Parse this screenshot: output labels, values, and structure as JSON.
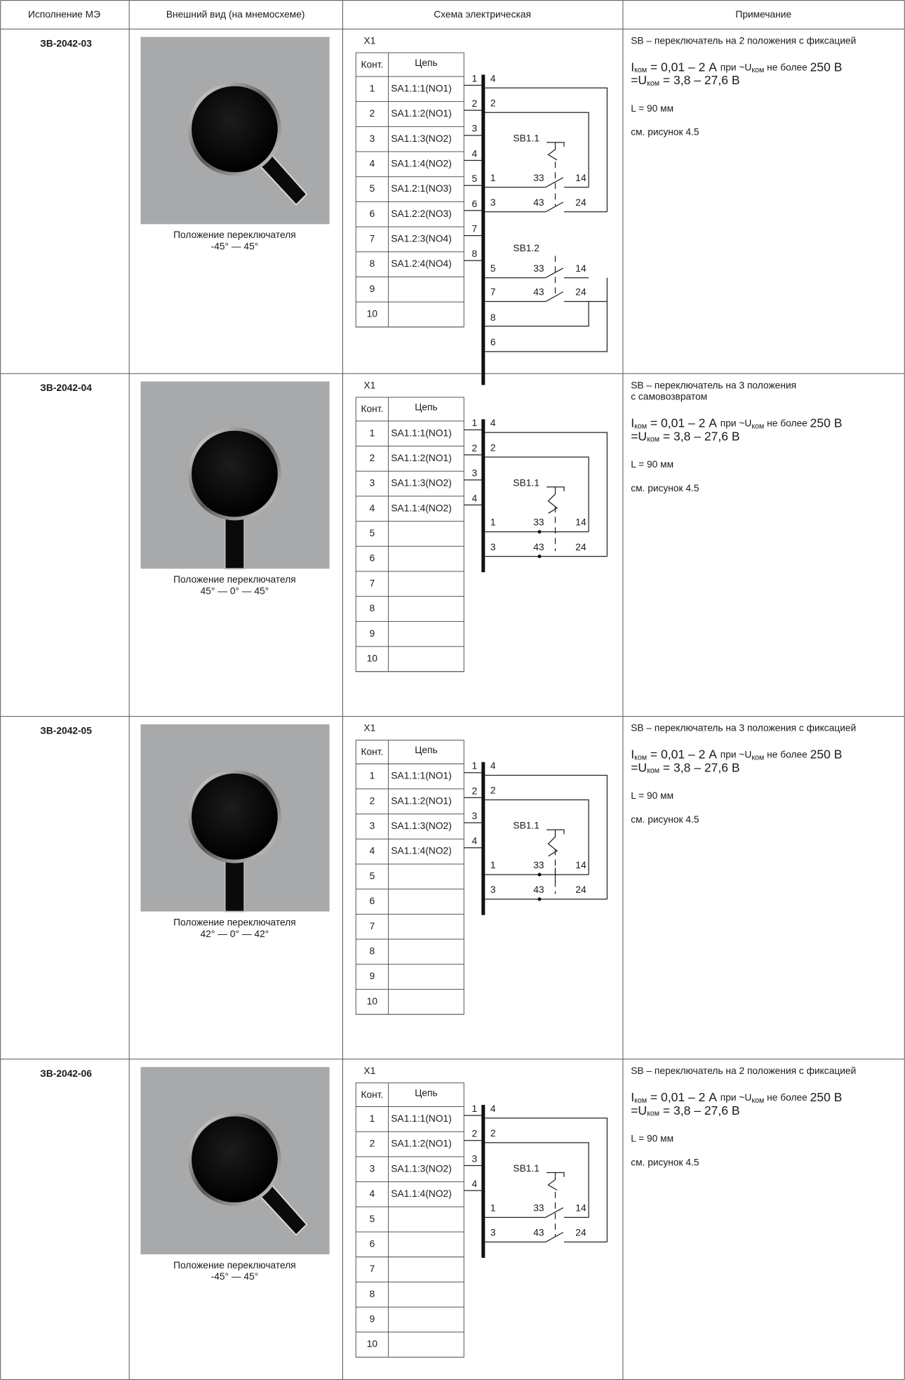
{
  "header": [
    "Исполнение МЭ",
    "Внешний вид (на мнемосхеме)",
    "Схема электрическая",
    "Примечание"
  ],
  "rows": [
    {
      "id": "ЗВ-2042-03",
      "caption": [
        "Положение переключателя",
        "-45° — 45°"
      ],
      "terminal": {
        "title": "X1",
        "headers": [
          "Конт.",
          "Цепь"
        ],
        "numbers": [
          "1",
          "2",
          "3",
          "4",
          "5",
          "6",
          "7",
          "8",
          "9",
          "10"
        ],
        "circuits": [
          "SA1.1:1(NO1)",
          "SA1.1:2(NO1)",
          "SA1.1:3(NO2)",
          "SA1.1:4(NO2)",
          "SA1.2:1(NO3)",
          "SA1.2:2(NO3)",
          "SA1.2:3(NO4)",
          "SA1.2:4(NO4)",
          null,
          null
        ]
      },
      "schematic": {
        "pins": [
          "1",
          "2",
          "3",
          "4",
          "5",
          "6",
          "7",
          "8"
        ],
        "bus_labels": [
          "4",
          "2",
          "1",
          "3",
          "5",
          "7",
          "8",
          "6"
        ],
        "switches": [
          {
            "name": "SB1.1",
            "contacts": [
              [
                "33",
                "14"
              ],
              [
                "43",
                "24"
              ]
            ]
          },
          {
            "name": "SB1.2",
            "contacts": [
              [
                "33",
                "14"
              ],
              [
                "43",
                "24"
              ]
            ]
          }
        ]
      },
      "notes": {
        "description": [
          "SB – переключатель на 2 положения с фиксацией"
        ],
        "current": [
          {
            "text": "I"
          },
          {
            "text": "ком",
            "sub": true
          },
          {
            "text": " = 0,01 – 2 А "
          },
          {
            "text": "при ~U",
            "small": true
          },
          {
            "text": "ком",
            "sub": true
          },
          {
            "text": " не более ",
            "small": true
          },
          {
            "text": "250 В"
          }
        ],
        "voltage": [
          {
            "text": "=U"
          },
          {
            "text": "ком",
            "sub": true
          },
          {
            "text": " = 3,8 – 27,6 В"
          }
        ],
        "length": "L = 90 мм",
        "reference": "см. рисунок 4.5"
      }
    },
    {
      "id": "ЗВ-2042-04",
      "caption": [
        "Положение переключателя",
        "45° — 0° — 45°"
      ],
      "terminal": {
        "title": "X1",
        "headers": [
          "Конт.",
          "Цепь"
        ],
        "numbers": [
          "1",
          "2",
          "3",
          "4",
          "5",
          "6",
          "7",
          "8",
          "9",
          "10"
        ],
        "circuits": [
          "SA1.1:1(NO1)",
          "SA1.1:2(NO1)",
          "SA1.1:3(NO2)",
          "SA1.1:4(NO2)",
          null,
          null,
          null,
          null,
          null,
          null
        ]
      },
      "schematic": {
        "pins": [
          "1",
          "2",
          "3",
          "4"
        ],
        "bus_labels": [
          "4",
          "2",
          "1",
          "3"
        ],
        "switches": [
          {
            "name": "SB1.1",
            "contacts": [
              [
                "33",
                "14"
              ],
              [
                "43",
                "24"
              ]
            ]
          }
        ]
      },
      "notes": {
        "description": [
          "SB – переключатель на 3 положения",
          "с самовозвратом"
        ],
        "current": [
          {
            "text": "I"
          },
          {
            "text": "ком",
            "sub": true
          },
          {
            "text": " = 0,01 – 2 А "
          },
          {
            "text": "при ~U",
            "small": true
          },
          {
            "text": "ком",
            "sub": true
          },
          {
            "text": " не более ",
            "small": true
          },
          {
            "text": "250 В"
          }
        ],
        "voltage": [
          {
            "text": "=U"
          },
          {
            "text": "ком",
            "sub": true
          },
          {
            "text": " = 3,8 – 27,6 В"
          }
        ],
        "length": "L = 90 мм",
        "reference": "см. рисунок 4.5"
      }
    },
    {
      "id": "ЗВ-2042-05",
      "caption": [
        "Положение переключателя",
        "42° — 0° — 42°"
      ],
      "terminal": {
        "title": "X1",
        "headers": [
          "Конт.",
          "Цепь"
        ],
        "numbers": [
          "1",
          "2",
          "3",
          "4",
          "5",
          "6",
          "7",
          "8",
          "9",
          "10"
        ],
        "circuits": [
          "SA1.1:1(NO1)",
          "SA1.1:2(NO1)",
          "SA1.1:3(NO2)",
          "SA1.1:4(NO2)",
          null,
          null,
          null,
          null,
          null,
          null
        ]
      },
      "schematic": {
        "pins": [
          "1",
          "2",
          "3",
          "4"
        ],
        "bus_labels": [
          "4",
          "2",
          "1",
          "3"
        ],
        "switches": [
          {
            "name": "SB1.1",
            "contacts": [
              [
                "33",
                "14"
              ],
              [
                "43",
                "24"
              ]
            ]
          }
        ]
      },
      "notes": {
        "description": [
          "SB – переключатель на 3 положения с фиксацией"
        ],
        "current": [
          {
            "text": "I"
          },
          {
            "text": "ком",
            "sub": true
          },
          {
            "text": " = 0,01 – 2 А "
          },
          {
            "text": "при ~U",
            "small": true
          },
          {
            "text": "ком",
            "sub": true
          },
          {
            "text": " не более ",
            "small": true
          },
          {
            "text": "250 В"
          }
        ],
        "voltage": [
          {
            "text": "=U"
          },
          {
            "text": "ком",
            "sub": true
          },
          {
            "text": " = 3,8 – 27,6 В"
          }
        ],
        "length": "L = 90 мм",
        "reference": "см. рисунок 4.5"
      }
    },
    {
      "id": "ЗВ-2042-06",
      "caption": [
        "Положение переключателя",
        "-45° — 45°"
      ],
      "terminal": {
        "title": "X1",
        "headers": [
          "Конт.",
          "Цепь"
        ],
        "numbers": [
          "1",
          "2",
          "3",
          "4",
          "5",
          "6",
          "7",
          "8",
          "9",
          "10"
        ],
        "circuits": [
          "SA1.1:1(NO1)",
          "SA1.1:2(NO1)",
          "SA1.1:3(NO2)",
          "SA1.1:4(NO2)",
          null,
          null,
          null,
          null,
          null,
          null
        ]
      },
      "schematic": {
        "pins": [
          "1",
          "2",
          "3",
          "4"
        ],
        "bus_labels": [
          "4",
          "2",
          "1",
          "3"
        ],
        "switches": [
          {
            "name": "SB1.1",
            "contacts": [
              [
                "33",
                "14"
              ],
              [
                "43",
                "24"
              ]
            ]
          }
        ]
      },
      "notes": {
        "description": [
          "SB – переключатель на 2 положения с фиксацией"
        ],
        "current": [
          {
            "text": "I"
          },
          {
            "text": "ком",
            "sub": true
          },
          {
            "text": " = 0,01 – 2 А "
          },
          {
            "text": "при ~U",
            "small": true
          },
          {
            "text": "ком",
            "sub": true
          },
          {
            "text": " не более ",
            "small": true
          },
          {
            "text": "250 В"
          }
        ],
        "voltage": [
          {
            "text": "=U"
          },
          {
            "text": "ком",
            "sub": true
          },
          {
            "text": " = 3,8 – 27,6 В"
          }
        ],
        "length": "L = 90 мм",
        "reference": "см. рисунок 4.5"
      }
    }
  ]
}
